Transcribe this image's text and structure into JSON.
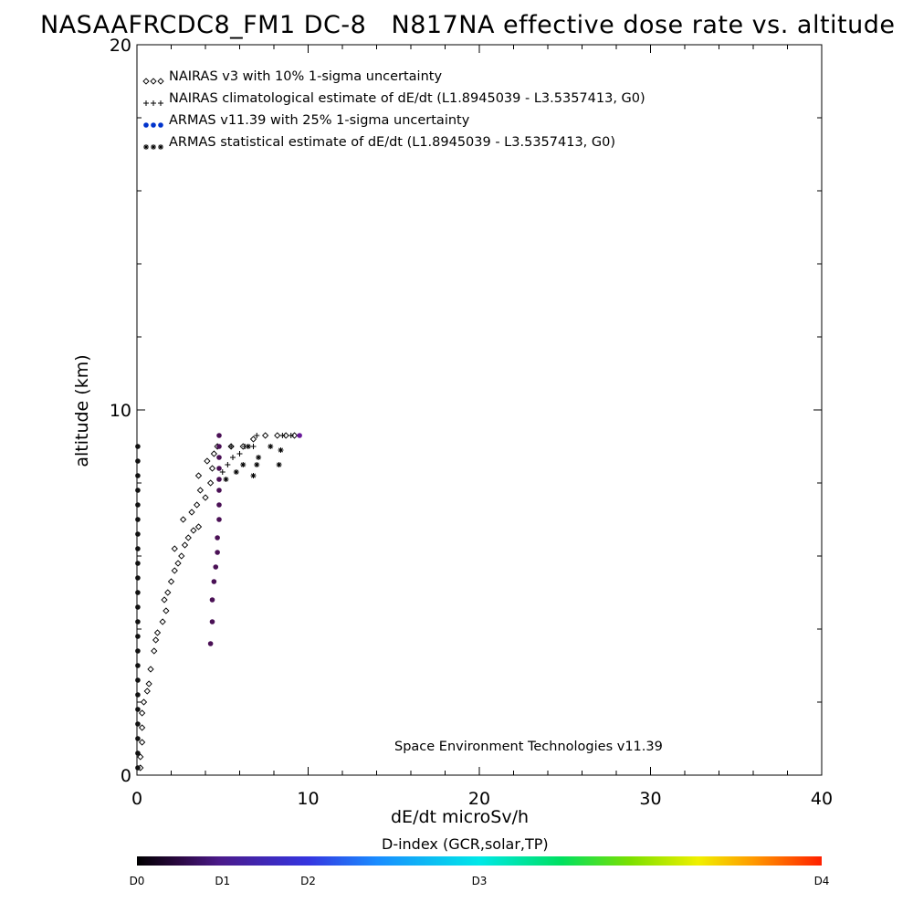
{
  "chart_data": {
    "type": "scatter",
    "title": "NASAAFRCDC8_FM1 DC-8   N817NA effective dose rate vs. altitude",
    "xlabel": "dE/dt microSv/h",
    "ylabel": "altitude (km)",
    "xlim": [
      0,
      40
    ],
    "ylim": [
      0,
      20
    ],
    "x_ticks": [
      "0",
      "10",
      "20",
      "30",
      "40"
    ],
    "y_ticks": [
      "0",
      "10",
      "20"
    ],
    "legend_position": "top-left",
    "annotation": "Space Environment Technologies v11.39",
    "series": [
      {
        "name": "NAIRAS v3 with 10% 1-sigma uncertainty",
        "marker": "diamond",
        "color": "#000000",
        "points": [
          [
            0.2,
            0.2
          ],
          [
            0.2,
            0.5
          ],
          [
            0.3,
            0.9
          ],
          [
            0.3,
            1.3
          ],
          [
            0.3,
            1.7
          ],
          [
            0.4,
            2.0
          ],
          [
            0.6,
            2.3
          ],
          [
            0.7,
            2.5
          ],
          [
            0.8,
            2.9
          ],
          [
            1.0,
            3.4
          ],
          [
            1.1,
            3.7
          ],
          [
            1.2,
            3.9
          ],
          [
            1.5,
            4.2
          ],
          [
            1.7,
            4.5
          ],
          [
            1.6,
            4.8
          ],
          [
            1.8,
            5.0
          ],
          [
            2.0,
            5.3
          ],
          [
            2.2,
            5.6
          ],
          [
            2.4,
            5.8
          ],
          [
            2.6,
            6.0
          ],
          [
            2.2,
            6.2
          ],
          [
            2.8,
            6.3
          ],
          [
            3.0,
            6.5
          ],
          [
            3.3,
            6.7
          ],
          [
            3.6,
            6.8
          ],
          [
            2.7,
            7.0
          ],
          [
            3.2,
            7.2
          ],
          [
            3.5,
            7.4
          ],
          [
            4.0,
            7.6
          ],
          [
            3.7,
            7.8
          ],
          [
            4.3,
            8.0
          ],
          [
            3.6,
            8.2
          ],
          [
            4.4,
            8.4
          ],
          [
            4.1,
            8.6
          ],
          [
            4.5,
            8.8
          ],
          [
            4.7,
            9.0
          ],
          [
            5.5,
            9.0
          ],
          [
            6.2,
            9.0
          ],
          [
            6.8,
            9.2
          ],
          [
            7.5,
            9.3
          ],
          [
            8.2,
            9.3
          ],
          [
            8.7,
            9.3
          ],
          [
            9.2,
            9.3
          ]
        ]
      },
      {
        "name": "NAIRAS climatological estimate of dE/dt (L1.8945039 - L3.5357413, G0)",
        "marker": "plus",
        "color": "#000000",
        "points": [
          [
            5.0,
            8.3
          ],
          [
            5.3,
            8.5
          ],
          [
            5.6,
            8.7
          ],
          [
            6.0,
            8.8
          ],
          [
            5.5,
            9.0
          ],
          [
            6.3,
            9.0
          ],
          [
            6.8,
            9.0
          ],
          [
            7.0,
            9.3
          ],
          [
            8.5,
            9.3
          ],
          [
            9.0,
            9.3
          ]
        ]
      },
      {
        "name": "ARMAS v11.39 with 25% 1-sigma uncertainty",
        "marker": "dot",
        "color": "#0033cc",
        "points": [
          [
            0.05,
            0.2
          ],
          [
            0.05,
            0.6
          ],
          [
            0.05,
            1.0
          ],
          [
            0.05,
            1.4
          ],
          [
            0.05,
            1.8
          ],
          [
            0.05,
            2.2
          ],
          [
            0.05,
            2.6
          ],
          [
            0.05,
            3.0
          ],
          [
            0.05,
            3.4
          ],
          [
            0.05,
            3.8
          ],
          [
            0.05,
            4.2
          ],
          [
            0.05,
            4.6
          ],
          [
            0.05,
            5.0
          ],
          [
            0.05,
            5.4
          ],
          [
            0.05,
            5.8
          ],
          [
            0.05,
            6.2
          ],
          [
            0.05,
            6.6
          ],
          [
            0.05,
            7.0
          ],
          [
            0.05,
            7.4
          ],
          [
            0.05,
            7.8
          ],
          [
            0.05,
            8.2
          ],
          [
            0.05,
            8.6
          ],
          [
            0.05,
            9.0
          ],
          [
            4.3,
            3.6
          ],
          [
            4.4,
            4.2
          ],
          [
            4.4,
            4.8
          ],
          [
            4.5,
            5.3
          ],
          [
            4.6,
            5.7
          ],
          [
            4.7,
            6.1
          ],
          [
            4.7,
            6.5
          ],
          [
            4.8,
            7.0
          ],
          [
            4.8,
            7.4
          ],
          [
            4.8,
            7.8
          ],
          [
            4.8,
            8.1
          ],
          [
            4.8,
            8.4
          ],
          [
            4.8,
            8.7
          ],
          [
            4.8,
            9.0
          ],
          [
            4.8,
            9.3
          ],
          [
            9.5,
            9.3
          ]
        ]
      },
      {
        "name": "ARMAS statistical estimate of dE/dt (L1.8945039 - L3.5357413, G0)",
        "marker": "asterisk",
        "color": "#000000",
        "points": [
          [
            5.2,
            8.1
          ],
          [
            5.8,
            8.3
          ],
          [
            6.2,
            8.5
          ],
          [
            6.8,
            8.2
          ],
          [
            7.0,
            8.5
          ],
          [
            7.1,
            8.7
          ],
          [
            8.3,
            8.5
          ],
          [
            8.4,
            8.9
          ],
          [
            6.5,
            9.0
          ],
          [
            7.8,
            9.0
          ]
        ]
      }
    ]
  },
  "colorbar": {
    "title": "D-index (GCR,solar,TP)",
    "labels": [
      {
        "text": "D0",
        "value": 0
      },
      {
        "text": "D1",
        "value": 0.125
      },
      {
        "text": "D2",
        "value": 0.25
      },
      {
        "text": "D3",
        "value": 0.5
      },
      {
        "text": "D4",
        "value": 1.0
      }
    ]
  }
}
